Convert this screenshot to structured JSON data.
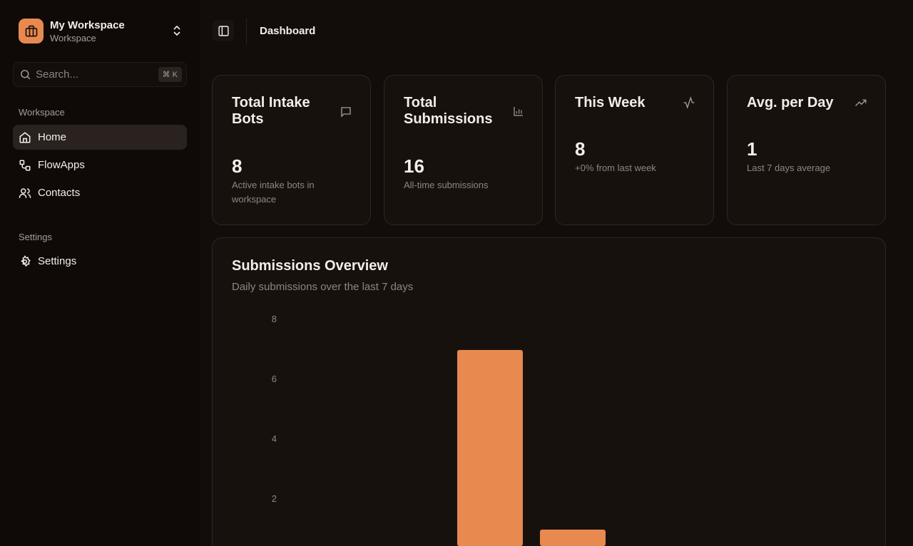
{
  "workspace": {
    "name": "My Workspace",
    "subtitle": "Workspace"
  },
  "search": {
    "placeholder": "Search...",
    "shortcut": "⌘ K"
  },
  "sidebar": {
    "sections": [
      {
        "label": "Workspace",
        "items": [
          {
            "label": "Home",
            "icon": "home-icon",
            "active": true
          },
          {
            "label": "FlowApps",
            "icon": "flow-icon"
          },
          {
            "label": "Contacts",
            "icon": "users-icon"
          }
        ]
      },
      {
        "label": "Settings",
        "items": [
          {
            "label": "Settings",
            "icon": "gear-icon"
          }
        ]
      }
    ]
  },
  "header": {
    "title": "Dashboard"
  },
  "stats": [
    {
      "title": "Total Intake Bots",
      "value": "8",
      "desc": "Active intake bots in workspace",
      "icon": "message-square-icon"
    },
    {
      "title": "Total Submissions",
      "value": "16",
      "desc": "All-time submissions",
      "icon": "bar-chart-icon"
    },
    {
      "title": "This Week",
      "value": "8",
      "desc": "+0% from last week",
      "icon": "activity-icon"
    },
    {
      "title": "Avg. per Day",
      "value": "1",
      "desc": "Last 7 days average",
      "icon": "trending-up-icon"
    }
  ],
  "overview": {
    "title": "Submissions Overview",
    "subtitle": "Daily submissions over the last 7 days"
  },
  "colors": {
    "accent": "#e8894f",
    "background": "#120c0a",
    "card": "#17110e"
  },
  "chart_data": {
    "type": "bar",
    "values": [
      0,
      0,
      7,
      1,
      0,
      0,
      0
    ],
    "ylim": [
      0,
      8
    ],
    "yticks": [
      "2",
      "4",
      "6",
      "8"
    ],
    "grid": false
  }
}
